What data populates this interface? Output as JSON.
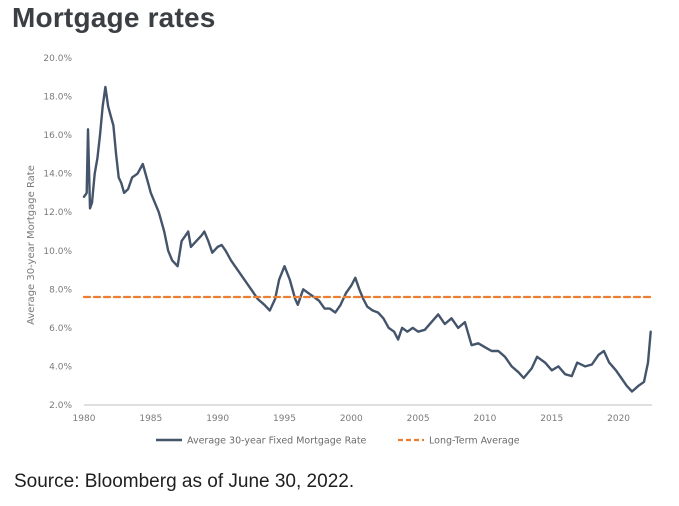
{
  "page": {
    "title": "Mortgage rates",
    "source": "Source: Bloomberg as of June 30, 2022."
  },
  "chart_data": {
    "type": "line",
    "title": "Mortgage rates",
    "xlabel": "",
    "ylabel": "Average 30-year Mortgage Rate",
    "xlim": [
      1980,
      2022.5
    ],
    "ylim": [
      2.0,
      20.0
    ],
    "x_ticks": [
      "1980",
      "1985",
      "1990",
      "1995",
      "2000",
      "2005",
      "2010",
      "2015",
      "2020"
    ],
    "y_ticks": [
      "2.0%",
      "4.0%",
      "6.0%",
      "8.0%",
      "10.0%",
      "12.0%",
      "14.0%",
      "16.0%",
      "18.0%",
      "20.0%"
    ],
    "legend": {
      "position": "bottom",
      "entries": [
        "Average 30-year Fixed Mortgage Rate",
        "Long-Term Average"
      ]
    },
    "colors": {
      "rate": "#44546a",
      "average": "#ed7d31",
      "axis": "#bfbfbf"
    },
    "series": [
      {
        "name": "Average 30-year Fixed Mortgage Rate",
        "style": "solid",
        "x": [
          1980.0,
          1980.2,
          1980.3,
          1980.45,
          1980.6,
          1980.8,
          1981.0,
          1981.2,
          1981.4,
          1981.6,
          1981.8,
          1982.0,
          1982.2,
          1982.4,
          1982.6,
          1982.8,
          1983.0,
          1983.3,
          1983.6,
          1984.0,
          1984.4,
          1984.8,
          1985.0,
          1985.3,
          1985.6,
          1986.0,
          1986.3,
          1986.6,
          1987.0,
          1987.3,
          1987.6,
          1987.8,
          1988.0,
          1988.4,
          1988.8,
          1989.0,
          1989.3,
          1989.6,
          1990.0,
          1990.3,
          1990.6,
          1991.0,
          1991.5,
          1992.0,
          1992.5,
          1993.0,
          1993.5,
          1993.9,
          1994.3,
          1994.6,
          1995.0,
          1995.4,
          1995.8,
          1996.0,
          1996.4,
          1996.8,
          1997.2,
          1997.6,
          1998.0,
          1998.4,
          1998.8,
          1999.2,
          1999.6,
          2000.0,
          2000.3,
          2000.6,
          2000.9,
          2001.2,
          2001.6,
          2002.0,
          2002.4,
          2002.8,
          2003.2,
          2003.5,
          2003.8,
          2004.2,
          2004.6,
          2005.0,
          2005.5,
          2006.0,
          2006.5,
          2007.0,
          2007.5,
          2008.0,
          2008.5,
          2009.0,
          2009.5,
          2010.0,
          2010.5,
          2011.0,
          2011.5,
          2012.0,
          2012.5,
          2012.9,
          2013.5,
          2013.9,
          2014.5,
          2015.0,
          2015.5,
          2016.0,
          2016.5,
          2016.9,
          2017.5,
          2018.0,
          2018.5,
          2018.9,
          2019.3,
          2019.8,
          2020.2,
          2020.6,
          2021.0,
          2021.5,
          2021.9,
          2022.2,
          2022.4
        ],
        "values": [
          12.8,
          13.0,
          16.3,
          12.2,
          12.5,
          14.0,
          14.8,
          16.0,
          17.5,
          18.5,
          17.5,
          17.0,
          16.5,
          15.0,
          13.8,
          13.5,
          13.0,
          13.2,
          13.8,
          14.0,
          14.5,
          13.5,
          13.0,
          12.5,
          12.0,
          11.0,
          10.0,
          9.5,
          9.2,
          10.5,
          10.8,
          11.0,
          10.2,
          10.5,
          10.8,
          11.0,
          10.5,
          9.9,
          10.2,
          10.3,
          10.0,
          9.5,
          9.0,
          8.5,
          8.0,
          7.5,
          7.2,
          6.9,
          7.5,
          8.5,
          9.2,
          8.5,
          7.5,
          7.2,
          8.0,
          7.8,
          7.6,
          7.4,
          7.0,
          7.0,
          6.8,
          7.2,
          7.8,
          8.2,
          8.6,
          8.0,
          7.5,
          7.1,
          6.9,
          6.8,
          6.5,
          6.0,
          5.8,
          5.4,
          6.0,
          5.8,
          6.0,
          5.8,
          5.9,
          6.3,
          6.7,
          6.2,
          6.5,
          6.0,
          6.3,
          5.1,
          5.2,
          5.0,
          4.8,
          4.8,
          4.5,
          4.0,
          3.7,
          3.4,
          3.9,
          4.5,
          4.2,
          3.8,
          4.0,
          3.6,
          3.5,
          4.2,
          4.0,
          4.1,
          4.6,
          4.8,
          4.2,
          3.8,
          3.4,
          3.0,
          2.7,
          3.0,
          3.2,
          4.2,
          5.8
        ]
      },
      {
        "name": "Long-Term Average",
        "style": "dashed",
        "x": [
          1980,
          2022.5
        ],
        "values": [
          7.6,
          7.6
        ]
      }
    ]
  }
}
